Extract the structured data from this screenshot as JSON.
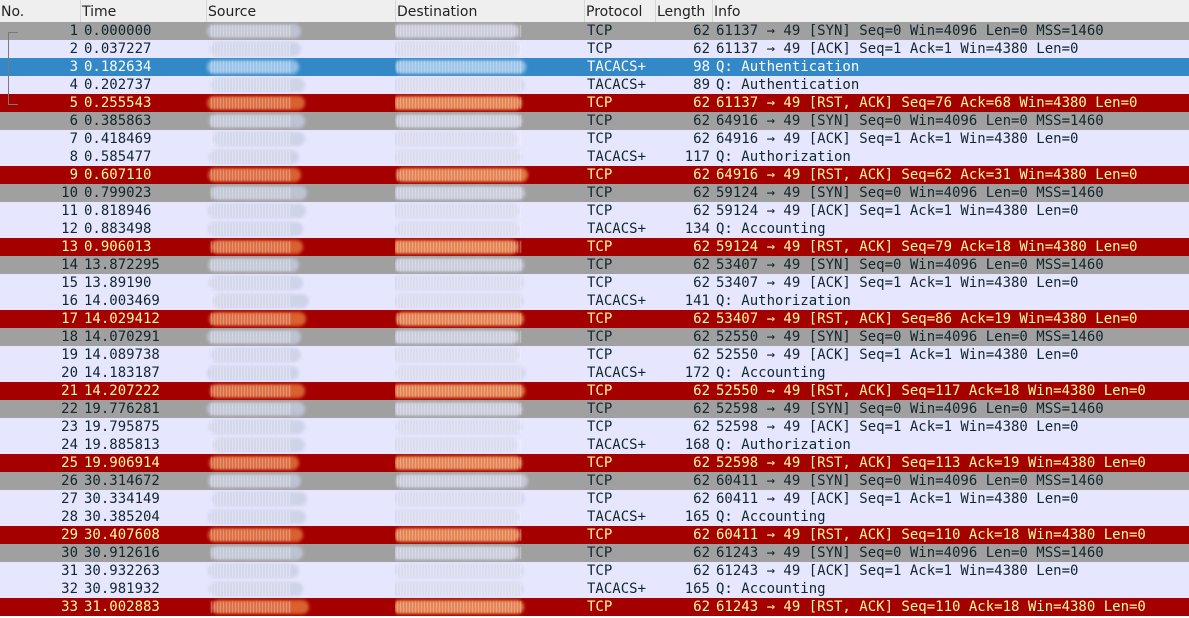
{
  "columns": {
    "no": "No.",
    "time": "Time",
    "source": "Source",
    "destination": "Destination",
    "protocol": "Protocol",
    "length": "Length",
    "info": "Info"
  },
  "colors": {
    "gray_bg": "#a0a0a0",
    "gray_fg": "#12272e",
    "lavender_bg": "#e7e6ff",
    "lavender_fg": "#12272e",
    "selected_bg": "#3388c8",
    "selected_fg": "#ffffff",
    "rst_bg": "#a40000",
    "rst_fg": "#fffc9c"
  },
  "packets": [
    {
      "no": "1",
      "time": "0.000000",
      "protocol": "TCP",
      "length": "62",
      "info": "61137 → 49 [SYN] Seq=0 Win=4096 Len=0 MSS=1460",
      "style": "gray"
    },
    {
      "no": "2",
      "time": "0.037227",
      "protocol": "TCP",
      "length": "62",
      "info": "61137 → 49 [ACK] Seq=1 Ack=1 Win=4380 Len=0",
      "style": "lavender"
    },
    {
      "no": "3",
      "time": "0.182634",
      "protocol": "TACACS+",
      "length": "98",
      "info": "Q: Authentication",
      "style": "selected"
    },
    {
      "no": "4",
      "time": "0.202737",
      "protocol": "TACACS+",
      "length": "89",
      "info": "Q: Authentication",
      "style": "lavender"
    },
    {
      "no": "5",
      "time": "0.255543",
      "protocol": "TCP",
      "length": "62",
      "info": "61137 → 49 [RST, ACK] Seq=76 Ack=68 Win=4380 Len=0",
      "style": "rst"
    },
    {
      "no": "6",
      "time": "0.385863",
      "protocol": "TCP",
      "length": "62",
      "info": "64916 → 49 [SYN] Seq=0 Win=4096 Len=0 MSS=1460",
      "style": "gray"
    },
    {
      "no": "7",
      "time": "0.418469",
      "protocol": "TCP",
      "length": "62",
      "info": "64916 → 49 [ACK] Seq=1 Ack=1 Win=4380 Len=0",
      "style": "lavender"
    },
    {
      "no": "8",
      "time": "0.585477",
      "protocol": "TACACS+",
      "length": "117",
      "info": "Q: Authorization",
      "style": "lavender"
    },
    {
      "no": "9",
      "time": "0.607110",
      "protocol": "TCP",
      "length": "62",
      "info": "64916 → 49 [RST, ACK] Seq=62 Ack=31 Win=4380 Len=0",
      "style": "rst"
    },
    {
      "no": "10",
      "time": "0.799023",
      "protocol": "TCP",
      "length": "62",
      "info": "59124 → 49 [SYN] Seq=0 Win=4096 Len=0 MSS=1460",
      "style": "gray"
    },
    {
      "no": "11",
      "time": "0.818946",
      "protocol": "TCP",
      "length": "62",
      "info": "59124 → 49 [ACK] Seq=1 Ack=1 Win=4380 Len=0",
      "style": "lavender"
    },
    {
      "no": "12",
      "time": "0.883498",
      "protocol": "TACACS+",
      "length": "134",
      "info": "Q: Accounting",
      "style": "lavender"
    },
    {
      "no": "13",
      "time": "0.906013",
      "protocol": "TCP",
      "length": "62",
      "info": "59124 → 49 [RST, ACK] Seq=79 Ack=18 Win=4380 Len=0",
      "style": "rst"
    },
    {
      "no": "14",
      "time": "13.872295",
      "protocol": "TCP",
      "length": "62",
      "info": "53407 → 49 [SYN] Seq=0 Win=4096 Len=0 MSS=1460",
      "style": "gray"
    },
    {
      "no": "15",
      "time": "13.89190",
      "protocol": "TCP",
      "length": "62",
      "info": "53407 → 49 [ACK] Seq=1 Ack=1 Win=4380 Len=0",
      "style": "lavender"
    },
    {
      "no": "16",
      "time": "14.003469",
      "protocol": "TACACS+",
      "length": "141",
      "info": "Q: Authorization",
      "style": "lavender"
    },
    {
      "no": "17",
      "time": "14.029412",
      "protocol": "TCP",
      "length": "62",
      "info": "53407 → 49 [RST, ACK] Seq=86 Ack=19 Win=4380 Len=0",
      "style": "rst"
    },
    {
      "no": "18",
      "time": "14.070291",
      "protocol": "TCP",
      "length": "62",
      "info": "52550 → 49 [SYN] Seq=0 Win=4096 Len=0 MSS=1460",
      "style": "gray"
    },
    {
      "no": "19",
      "time": "14.089738",
      "protocol": "TCP",
      "length": "62",
      "info": "52550 → 49 [ACK] Seq=1 Ack=1 Win=4380 Len=0",
      "style": "lavender"
    },
    {
      "no": "20",
      "time": "14.183187",
      "protocol": "TACACS+",
      "length": "172",
      "info": "Q: Accounting",
      "style": "lavender"
    },
    {
      "no": "21",
      "time": "14.207222",
      "protocol": "TCP",
      "length": "62",
      "info": "52550 → 49 [RST, ACK] Seq=117 Ack=18 Win=4380 Len=0",
      "style": "rst"
    },
    {
      "no": "22",
      "time": "19.776281",
      "protocol": "TCP",
      "length": "62",
      "info": "52598 → 49 [SYN] Seq=0 Win=4096 Len=0 MSS=1460",
      "style": "gray"
    },
    {
      "no": "23",
      "time": "19.795875",
      "protocol": "TCP",
      "length": "62",
      "info": "52598 → 49 [ACK] Seq=1 Ack=1 Win=4380 Len=0",
      "style": "lavender"
    },
    {
      "no": "24",
      "time": "19.885813",
      "protocol": "TACACS+",
      "length": "168",
      "info": "Q: Authorization",
      "style": "lavender"
    },
    {
      "no": "25",
      "time": "19.906914",
      "protocol": "TCP",
      "length": "62",
      "info": "52598 → 49 [RST, ACK] Seq=113 Ack=19 Win=4380 Len=0",
      "style": "rst"
    },
    {
      "no": "26",
      "time": "30.314672",
      "protocol": "TCP",
      "length": "62",
      "info": "60411 → 49 [SYN] Seq=0 Win=4096 Len=0 MSS=1460",
      "style": "gray"
    },
    {
      "no": "27",
      "time": "30.334149",
      "protocol": "TCP",
      "length": "62",
      "info": "60411 → 49 [ACK] Seq=1 Ack=1 Win=4380 Len=0",
      "style": "lavender"
    },
    {
      "no": "28",
      "time": "30.385204",
      "protocol": "TACACS+",
      "length": "165",
      "info": "Q: Accounting",
      "style": "lavender"
    },
    {
      "no": "29",
      "time": "30.407608",
      "protocol": "TCP",
      "length": "62",
      "info": "60411 → 49 [RST, ACK] Seq=110 Ack=18 Win=4380 Len=0",
      "style": "rst"
    },
    {
      "no": "30",
      "time": "30.912616",
      "protocol": "TCP",
      "length": "62",
      "info": "61243 → 49 [SYN] Seq=0 Win=4096 Len=0 MSS=1460",
      "style": "gray"
    },
    {
      "no": "31",
      "time": "30.932263",
      "protocol": "TCP",
      "length": "62",
      "info": "61243 → 49 [ACK] Seq=1 Ack=1 Win=4380 Len=0",
      "style": "lavender"
    },
    {
      "no": "32",
      "time": "30.981932",
      "protocol": "TACACS+",
      "length": "165",
      "info": "Q: Accounting",
      "style": "lavender"
    },
    {
      "no": "33",
      "time": "31.002883",
      "protocol": "TCP",
      "length": "62",
      "info": "61243 → 49 [RST, ACK] Seq=110 Ack=18 Win=4380 Len=0",
      "style": "rst"
    }
  ]
}
